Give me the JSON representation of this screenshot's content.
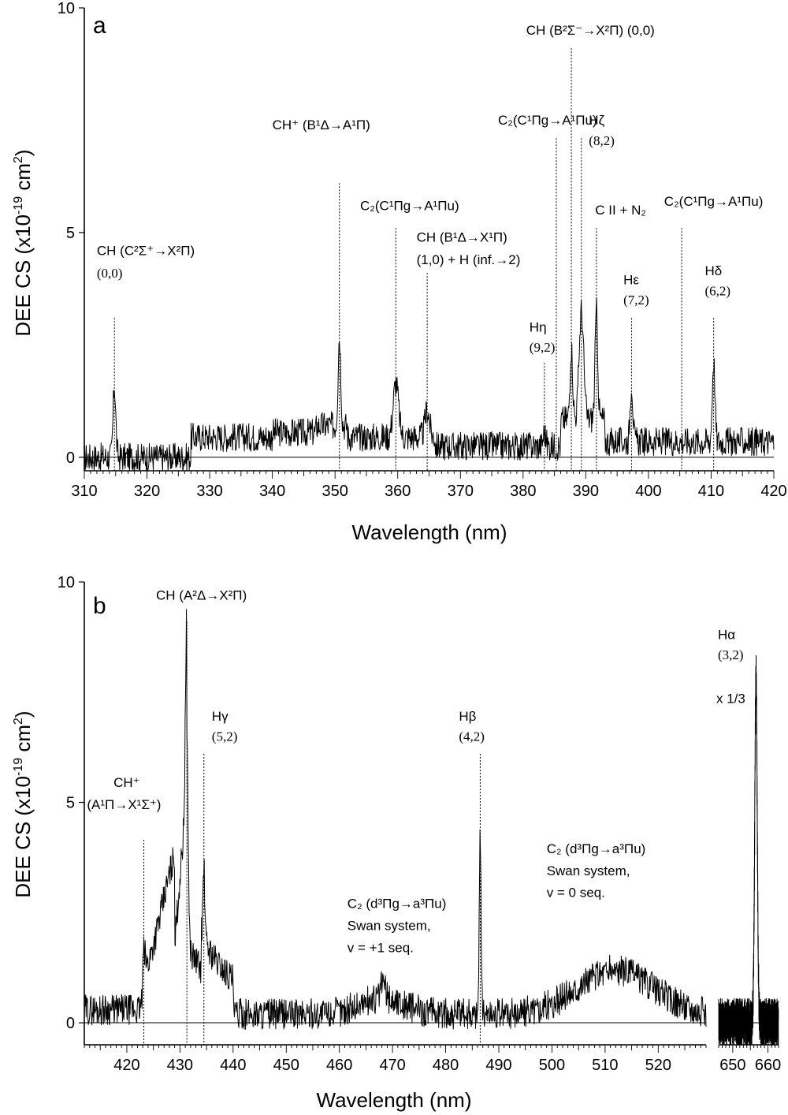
{
  "chart_data": [
    {
      "type": "line",
      "panel_label": "a",
      "xlabel": "Wavelength (nm)",
      "ylabel": "DEE CS (x10^-19 cm^2)",
      "xlim": [
        310,
        420
      ],
      "ylim": [
        -0.3,
        10
      ],
      "xticks": [
        310,
        320,
        330,
        340,
        350,
        360,
        370,
        380,
        390,
        400,
        410,
        420
      ],
      "yticks": [
        0,
        5,
        10
      ],
      "baseline_noise": 0.32,
      "features": [
        {
          "x": 314.8,
          "h": 1.6,
          "w": 0.3
        },
        {
          "x": 350.7,
          "h": 2.0,
          "w": 0.3
        },
        {
          "x": 359.7,
          "h": 1.2,
          "w": 0.6
        },
        {
          "x": 364.7,
          "h": 0.6,
          "w": 0.5
        },
        {
          "x": 383.4,
          "h": 0.3,
          "w": 0.3
        },
        {
          "x": 387.7,
          "h": 1.6,
          "w": 0.3
        },
        {
          "x": 389.3,
          "h": 2.4,
          "w": 0.5
        },
        {
          "x": 391.7,
          "h": 2.4,
          "w": 0.3
        },
        {
          "x": 397.3,
          "h": 1.3,
          "w": 0.3
        },
        {
          "x": 410.4,
          "h": 1.8,
          "w": 0.3
        }
      ],
      "markers": [
        314.8,
        350.7,
        359.7,
        364.7,
        383.4,
        385.3,
        387.7,
        389.3,
        391.7,
        397.3,
        405.3,
        410.4
      ],
      "annotations": [
        {
          "text": "CH (C²Σ⁺→X²Π)",
          "x": 312,
          "y": 4.5
        },
        {
          "text": "(0,0)",
          "x": 312,
          "y": 4.0
        },
        {
          "text": "CH⁺ (B¹Δ→A¹Π)",
          "x": 340,
          "y": 7.3
        },
        {
          "text": "C₂(C¹Πg→A¹Πu)",
          "x": 354,
          "y": 5.5
        },
        {
          "text": "CH (B¹Δ→X¹Π)",
          "x": 363,
          "y": 4.8
        },
        {
          "text": "(1,0) + H (inf.→2)",
          "x": 363,
          "y": 4.3
        },
        {
          "text": "Hη",
          "x": 381,
          "y": 2.8
        },
        {
          "text": "(9,2)",
          "x": 381,
          "y": 2.35
        },
        {
          "text": "C₂(C¹Πg→A¹Πu)",
          "x": 376,
          "y": 7.4
        },
        {
          "text": "CH (B²Σ⁻→X²Π) (0,0)",
          "x": 380.5,
          "y": 9.4
        },
        {
          "text": "Hζ",
          "x": 390.5,
          "y": 7.4
        },
        {
          "text": "(8,2)",
          "x": 390.5,
          "y": 6.95
        },
        {
          "text": "C II + N₂",
          "x": 391.5,
          "y": 5.4
        },
        {
          "text": "Hε",
          "x": 396,
          "y": 3.85
        },
        {
          "text": "(7,2)",
          "x": 396,
          "y": 3.4
        },
        {
          "text": "C₂(C¹Πg→A¹Πu)",
          "x": 402.5,
          "y": 5.6
        },
        {
          "text": "Hδ",
          "x": 409,
          "y": 4.05
        },
        {
          "text": "(6,2)",
          "x": 409,
          "y": 3.6
        }
      ]
    },
    {
      "type": "line",
      "panel_label": "b",
      "xlabel": "Wavelength (nm)",
      "ylabel": "DEE CS (x10^-19 cm^2)",
      "segments": [
        {
          "xlim": [
            412,
            529
          ],
          "xticks": [
            420,
            430,
            440,
            450,
            460,
            470,
            480,
            490,
            500,
            510,
            520
          ]
        },
        {
          "xlim": [
            646,
            663
          ],
          "xticks": [
            650,
            660
          ]
        }
      ],
      "ylim": [
        -0.5,
        10
      ],
      "yticks": [
        0,
        5,
        10
      ],
      "scale_note": "x 1/3",
      "baseline_noise": 0.35,
      "features": [
        {
          "x": 423.2,
          "h": 0.6,
          "w": 0.4
        },
        {
          "x": 431.3,
          "h": 4.5,
          "w": 0.35
        },
        {
          "x": 434.5,
          "h": 1.6,
          "w": 0.25
        },
        {
          "x": 468.2,
          "h": 0.4,
          "w": 0.6
        },
        {
          "x": 486.5,
          "h": 4.0,
          "w": 0.25
        },
        {
          "x": 656.6,
          "h": 7.8,
          "w": 0.5
        }
      ],
      "markers": [
        423.2,
        431.3,
        434.5,
        486.5
      ],
      "annotations": [
        {
          "text": "CH⁺",
          "x": 417.5,
          "y": 5.35
        },
        {
          "text": "(A¹Π→X¹Σ⁺)",
          "x": 412.5,
          "y": 4.85
        },
        {
          "text": "CH (A²Δ→X²Π)",
          "x": 425.5,
          "y": 9.6
        },
        {
          "text": "Hγ",
          "x": 436,
          "y": 6.85
        },
        {
          "text": "(5,2)",
          "x": 436,
          "y": 6.4
        },
        {
          "text": "C₂ (d³Πg→a³Πu)",
          "x": 461.5,
          "y": 2.6
        },
        {
          "text": "Swan system,",
          "x": 461.5,
          "y": 2.1
        },
        {
          "text": "v = +1 seq.",
          "x": 461.5,
          "y": 1.6
        },
        {
          "text": "Hβ",
          "x": 482.5,
          "y": 6.85
        },
        {
          "text": "(4,2)",
          "x": 482.5,
          "y": 6.4
        },
        {
          "text": "C₂ (d³Πg→a³Πu)",
          "x": 499,
          "y": 3.85
        },
        {
          "text": "Swan system,",
          "x": 499,
          "y": 3.35
        },
        {
          "text": "v = 0 seq.",
          "x": 499,
          "y": 2.85
        },
        {
          "text": "Hα",
          "x": 647.5,
          "y": 8.7
        },
        {
          "text": "(3,2)",
          "x": 647.5,
          "y": 8.25
        },
        {
          "text": "x 1/3",
          "x": 646.5,
          "y": 7.25
        }
      ]
    }
  ]
}
